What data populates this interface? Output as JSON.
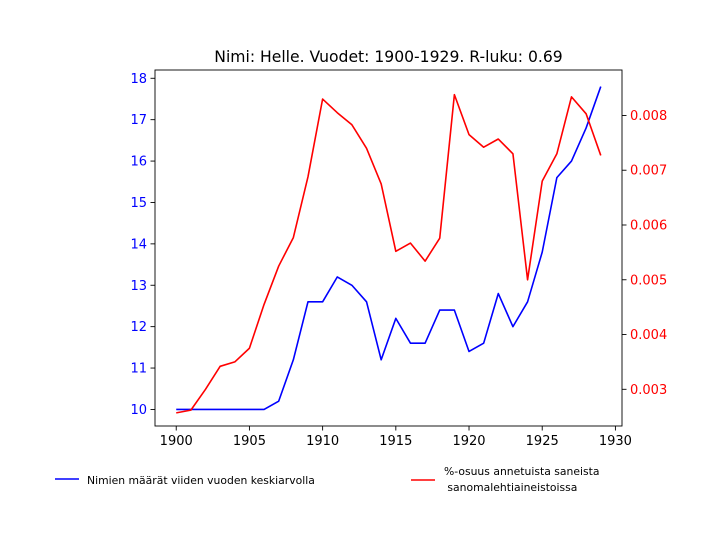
{
  "chart_data": {
    "type": "line",
    "title": "Nimi: Helle. Vuodet: 1900-1929. R-luku: 0.69",
    "x": [
      1900,
      1901,
      1902,
      1903,
      1904,
      1905,
      1906,
      1907,
      1908,
      1909,
      1910,
      1911,
      1912,
      1913,
      1914,
      1915,
      1916,
      1917,
      1918,
      1919,
      1920,
      1921,
      1922,
      1923,
      1924,
      1925,
      1926,
      1927,
      1928,
      1929
    ],
    "xlim": [
      1898.55,
      1930.45
    ],
    "x_ticks": [
      "1900",
      "1905",
      "1910",
      "1915",
      "1920",
      "1925",
      "1930"
    ],
    "y_left": {
      "ylim": [
        9.6,
        18.2
      ],
      "ticks": [
        "10",
        "11",
        "12",
        "13",
        "14",
        "15",
        "16",
        "17",
        "18"
      ],
      "color": "#0000ff"
    },
    "y_right": {
      "ylim": [
        0.00233,
        0.00883
      ],
      "ticks": [
        "0.003",
        "0.004",
        "0.005",
        "0.006",
        "0.007",
        "0.008"
      ],
      "color": "#ff0000"
    },
    "series": [
      {
        "name": "Nimien määrät viiden vuoden keskiarvolla",
        "axis": "left",
        "color": "#0000ff",
        "values": [
          10.0,
          10.0,
          10.0,
          10.0,
          10.0,
          10.0,
          10.0,
          10.2,
          11.2,
          12.6,
          12.6,
          13.2,
          13.0,
          12.6,
          11.2,
          12.2,
          11.6,
          11.6,
          12.4,
          12.4,
          11.4,
          11.6,
          12.8,
          12.0,
          12.6,
          13.8,
          15.6,
          16.0,
          16.8,
          17.8
        ]
      },
      {
        "name": "%-osuus annetuista saneista\n sanomalehtiaineistoissa",
        "axis": "right",
        "color": "#ff0000",
        "values": [
          0.00257,
          0.00262,
          0.003,
          0.00342,
          0.0035,
          0.00375,
          0.00455,
          0.00525,
          0.00577,
          0.00688,
          0.0083,
          0.00805,
          0.00783,
          0.0074,
          0.00675,
          0.00552,
          0.00567,
          0.00534,
          0.00576,
          0.00838,
          0.00765,
          0.00742,
          0.00757,
          0.0073,
          0.005,
          0.0068,
          0.0073,
          0.00834,
          0.00803,
          0.00727
        ]
      }
    ],
    "legend": {
      "position": "bottom",
      "entries": [
        {
          "label": "Nimien määrät viiden vuoden keskiarvolla",
          "color": "#0000ff"
        },
        {
          "label": "%-osuus annetuista saneista",
          "label2": " sanomalehtiaineistoissa",
          "color": "#ff0000"
        }
      ]
    },
    "grid": false
  }
}
